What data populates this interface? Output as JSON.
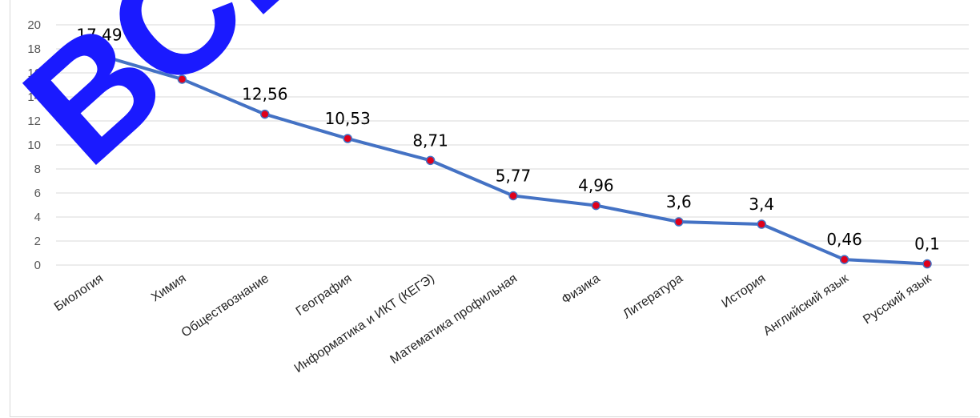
{
  "chart_data": {
    "type": "line",
    "categories": [
      "Биология",
      "Химия",
      "Обществознание",
      "География",
      "Информатика и ИКТ (КЕГЭ)",
      "Математика профильная",
      "Физика",
      "Литература",
      "История",
      "Английский язык",
      "Русский язык"
    ],
    "values": [
      17.49,
      15.47,
      12.56,
      10.53,
      8.71,
      5.77,
      4.96,
      3.6,
      3.4,
      0.46,
      0.1
    ],
    "data_labels": [
      "17,49",
      "15,47",
      "12,56",
      "10,53",
      "8,71",
      "5,77",
      "4,96",
      "3,6",
      "3,4",
      "0,46",
      "0,1"
    ],
    "y_ticks": [
      "0",
      "2",
      "4",
      "6",
      "8",
      "10",
      "12",
      "14",
      "16",
      "18",
      "20"
    ],
    "ylim": [
      0,
      20
    ],
    "grid": true,
    "legend": "none",
    "title": "",
    "xlabel": "",
    "ylabel": "",
    "colors": {
      "line": "#4472c4",
      "marker": "#e0001b",
      "grid": "#d9d9d9"
    }
  },
  "watermark": {
    "text": "ВСЕ",
    "color": "#1a1aff"
  }
}
